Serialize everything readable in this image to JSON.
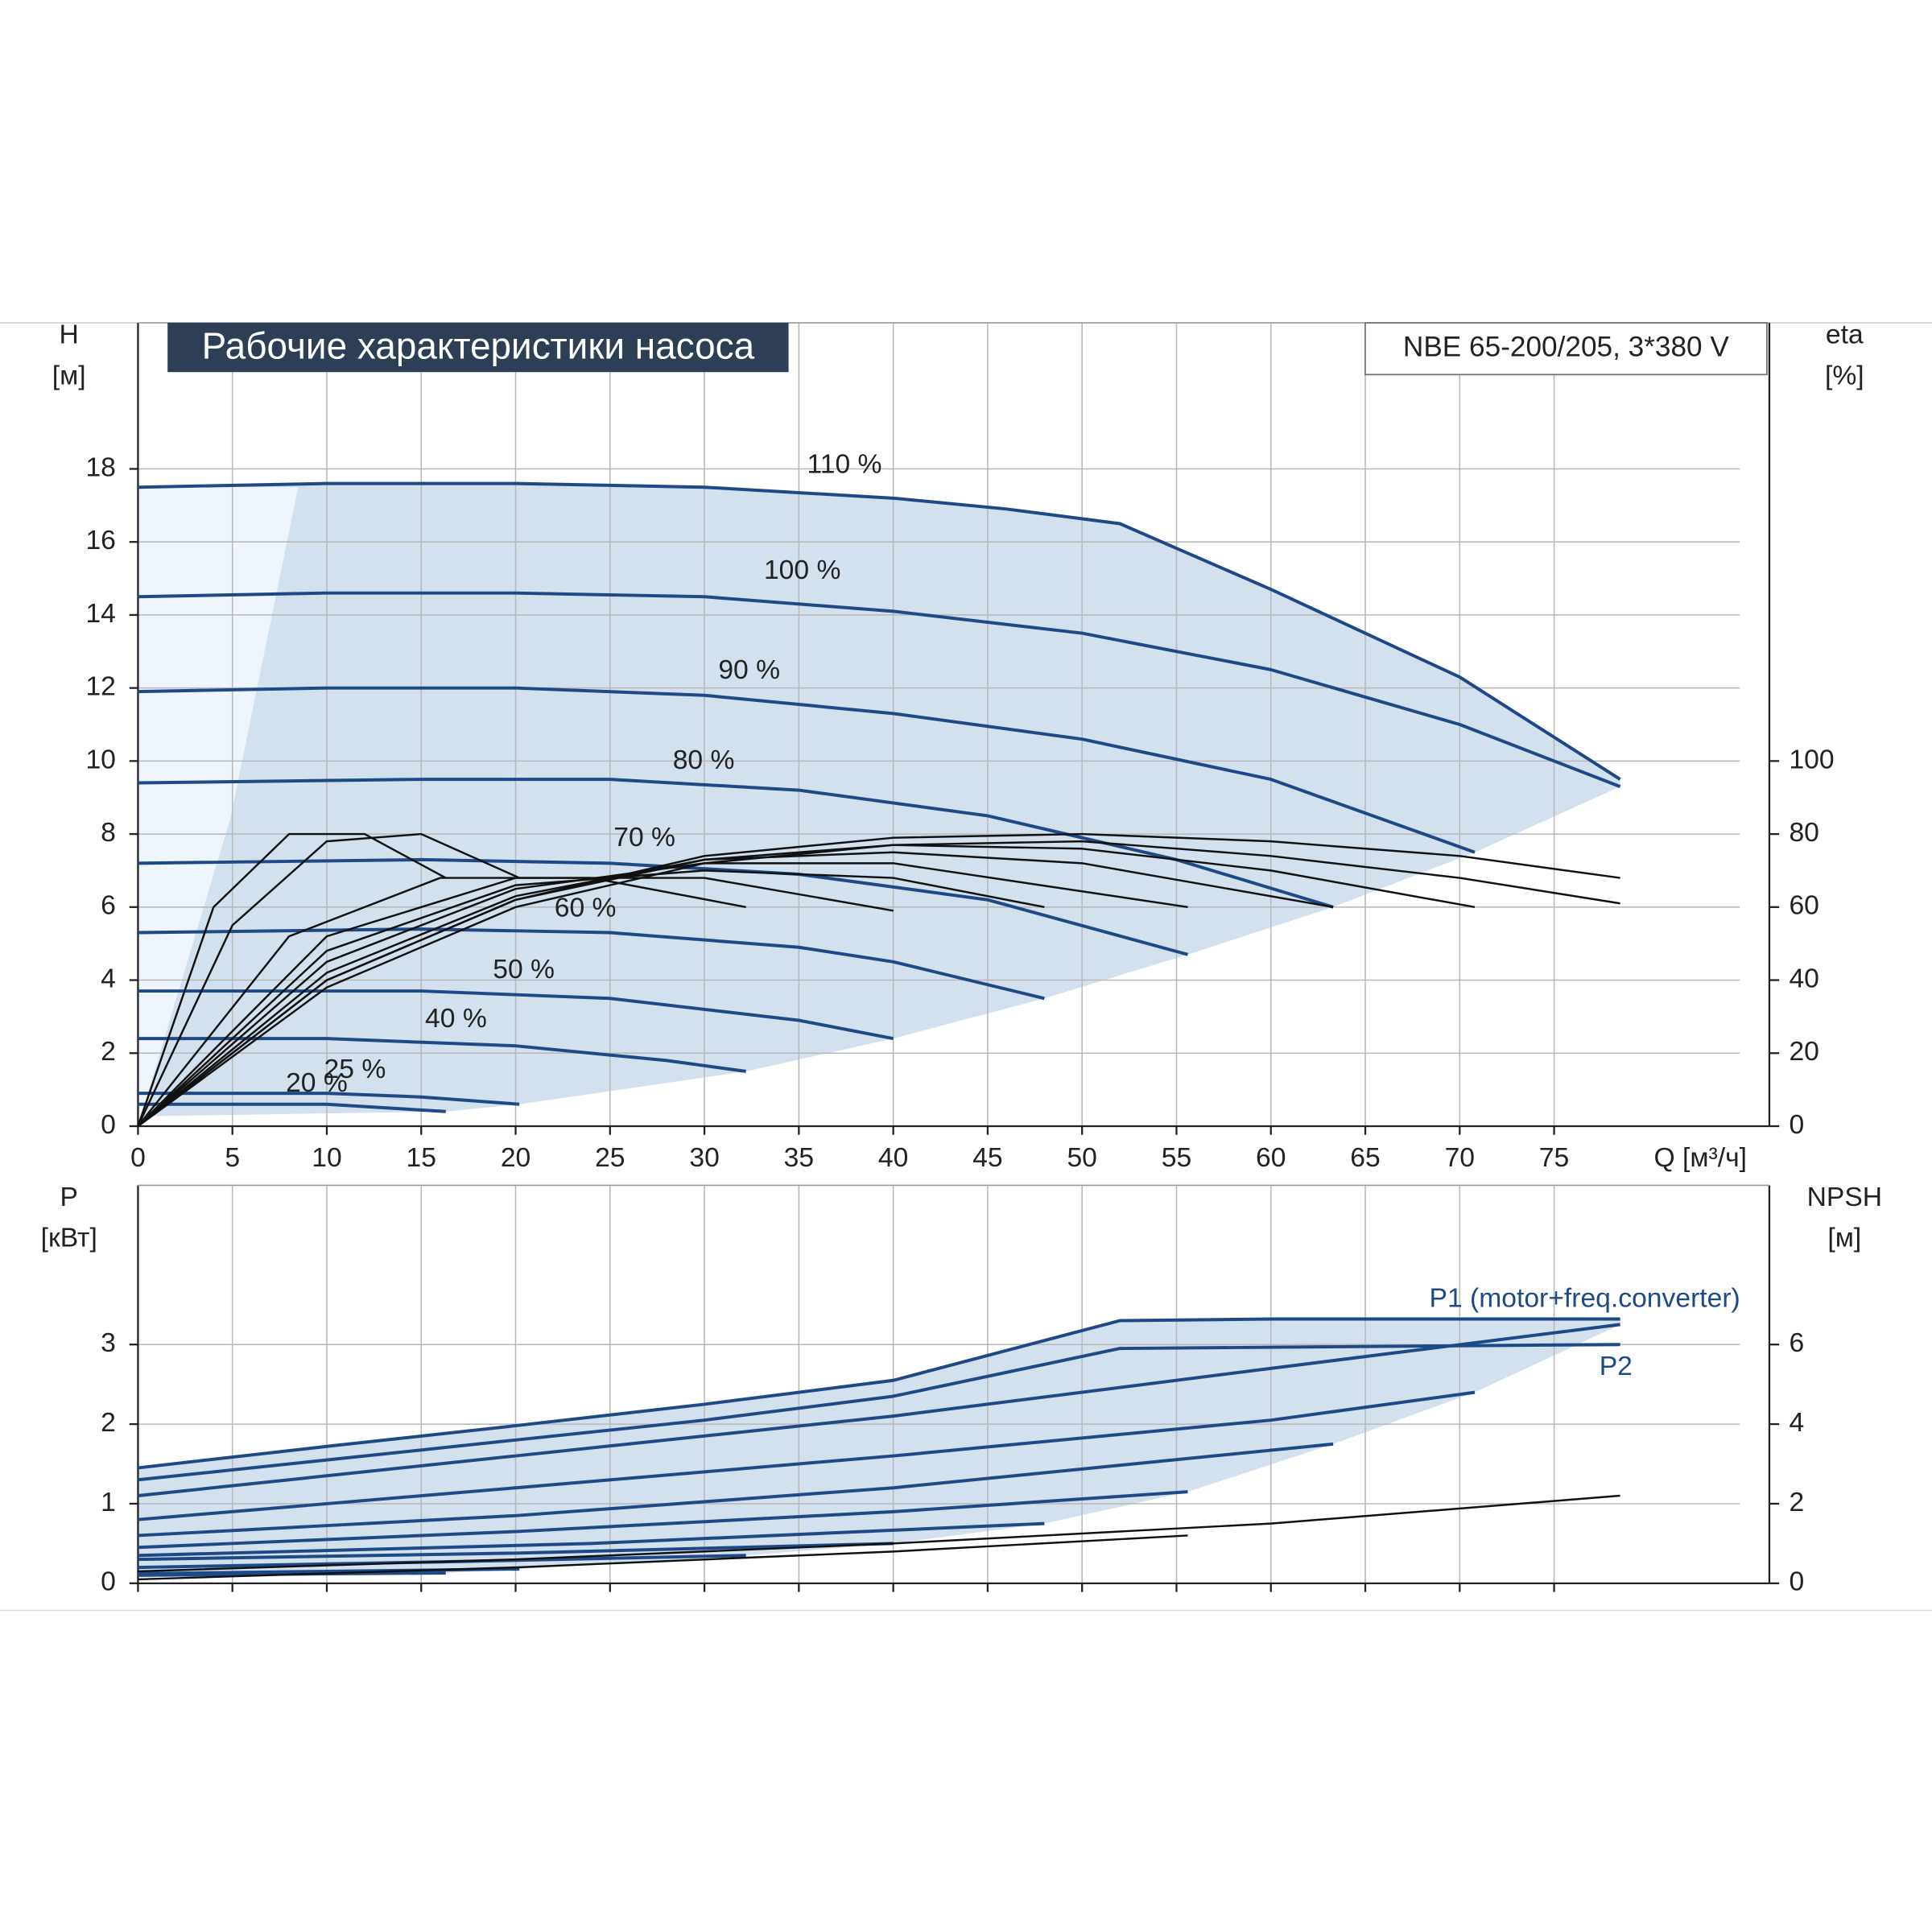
{
  "chart_data": [
    {
      "type": "line",
      "title": "Рабочие характеристики насоса",
      "subtitle": "NBE 65-200/205, 3*380 V",
      "ylabel": "H",
      "yunit": "[м]",
      "y2label": "eta",
      "y2unit": "[%]",
      "xlabel": "Q [м³/ч]",
      "xlim": [
        0,
        86.4
      ],
      "ylim": [
        0,
        22
      ],
      "y2lim": [
        0,
        220
      ],
      "xticks": [
        0,
        5,
        10,
        15,
        20,
        25,
        30,
        35,
        40,
        45,
        50,
        55,
        60,
        65,
        70,
        75
      ],
      "yticks": [
        0,
        2,
        4,
        6,
        8,
        10,
        12,
        14,
        16,
        18
      ],
      "y2ticks": [
        0,
        20,
        40,
        60,
        80,
        100
      ],
      "grid": true,
      "shaded_region": true,
      "show_xtick_labels": true,
      "series": [
        {
          "name": "110 %",
          "color": "#1d4a86",
          "x": [
            0,
            10,
            20,
            30,
            40,
            46,
            52,
            60,
            70,
            78.5
          ],
          "values": [
            17.5,
            17.6,
            17.6,
            17.5,
            17.2,
            16.9,
            16.5,
            14.7,
            12.3,
            9.5
          ]
        },
        {
          "name": "100 %",
          "color": "#1d4a86",
          "x": [
            0,
            10,
            20,
            30,
            40,
            50,
            60,
            70,
            78.5
          ],
          "values": [
            14.5,
            14.6,
            14.6,
            14.5,
            14.1,
            13.5,
            12.5,
            11.0,
            9.3
          ]
        },
        {
          "name": "90 %",
          "color": "#1d4a86",
          "x": [
            0,
            10,
            20,
            30,
            40,
            50,
            60,
            70.8
          ],
          "values": [
            11.9,
            12.0,
            12.0,
            11.8,
            11.3,
            10.6,
            9.5,
            7.5
          ]
        },
        {
          "name": "80 %",
          "color": "#1d4a86",
          "x": [
            0,
            15,
            25,
            35,
            45,
            55,
            63.3
          ],
          "values": [
            9.4,
            9.5,
            9.5,
            9.2,
            8.5,
            7.3,
            6.0
          ]
        },
        {
          "name": "70 %",
          "color": "#1d4a86",
          "x": [
            0,
            15,
            25,
            35,
            45,
            55.6
          ],
          "values": [
            7.2,
            7.3,
            7.2,
            6.9,
            6.2,
            4.7
          ]
        },
        {
          "name": "60 %",
          "color": "#1d4a86",
          "x": [
            0,
            15,
            25,
            35,
            40,
            48
          ],
          "values": [
            5.3,
            5.4,
            5.3,
            4.9,
            4.5,
            3.5
          ]
        },
        {
          "name": "50 %",
          "color": "#1d4a86",
          "x": [
            0,
            15,
            25,
            35,
            40
          ],
          "values": [
            3.7,
            3.7,
            3.5,
            2.9,
            2.4
          ]
        },
        {
          "name": "40 %",
          "color": "#1d4a86",
          "x": [
            0,
            10,
            20,
            28,
            32.2
          ],
          "values": [
            2.4,
            2.4,
            2.2,
            1.8,
            1.5
          ]
        },
        {
          "name": "25 %",
          "color": "#1d4a86",
          "x": [
            0,
            10,
            15,
            20.2
          ],
          "values": [
            0.9,
            0.9,
            0.8,
            0.6
          ]
        },
        {
          "name": "20 %",
          "color": "#1d4a86",
          "x": [
            0,
            10,
            16.3
          ],
          "values": [
            0.6,
            0.6,
            0.4
          ]
        },
        {
          "color": "#111111",
          "axis": "y2",
          "x": [
            0,
            10,
            20,
            30,
            40,
            50,
            60,
            70,
            78.5
          ],
          "values": [
            0,
            40,
            62,
            74,
            79,
            80,
            78,
            74,
            68
          ]
        },
        {
          "color": "#111111",
          "axis": "y2",
          "x": [
            0,
            10,
            20,
            30,
            40,
            50,
            60,
            70,
            78.5
          ],
          "values": [
            0,
            38,
            60,
            72,
            77,
            78,
            74,
            68,
            61
          ]
        },
        {
          "color": "#111111",
          "axis": "y2",
          "x": [
            0,
            10,
            20,
            30,
            40,
            50,
            60,
            70.8
          ],
          "values": [
            0,
            40,
            62,
            73,
            77,
            76,
            70,
            60
          ]
        },
        {
          "color": "#111111",
          "axis": "y2",
          "x": [
            0,
            10,
            20,
            30,
            40,
            50,
            63.3
          ],
          "values": [
            0,
            42,
            63,
            73,
            75,
            72,
            60
          ]
        },
        {
          "color": "#111111",
          "axis": "y2",
          "x": [
            0,
            10,
            20,
            30,
            40,
            55.6
          ],
          "values": [
            0,
            45,
            65,
            72,
            72,
            60
          ]
        },
        {
          "color": "#111111",
          "axis": "y2",
          "x": [
            0,
            10,
            20,
            30,
            40,
            48
          ],
          "values": [
            0,
            48,
            66,
            70,
            68,
            60
          ]
        },
        {
          "color": "#111111",
          "axis": "y2",
          "x": [
            0,
            10,
            20,
            30,
            40
          ],
          "values": [
            0,
            52,
            68,
            68,
            59
          ]
        },
        {
          "color": "#111111",
          "axis": "y2",
          "x": [
            0,
            8,
            16,
            24,
            32.2
          ],
          "values": [
            0,
            52,
            68,
            68,
            60
          ]
        },
        {
          "color": "#111111",
          "axis": "y2",
          "x": [
            0,
            5,
            10,
            15,
            20.2
          ],
          "values": [
            0,
            55,
            78,
            80,
            68
          ]
        },
        {
          "color": "#111111",
          "axis": "y2",
          "x": [
            0,
            4,
            8,
            12,
            16.3
          ],
          "values": [
            0,
            60,
            80,
            80,
            68
          ]
        }
      ]
    },
    {
      "type": "line",
      "ylabel": "P",
      "yunit": "[кВт]",
      "y2label": "NPSH",
      "y2unit": "[м]",
      "xlim": [
        0,
        86.4
      ],
      "ylim": [
        0,
        5
      ],
      "y2lim": [
        0,
        10
      ],
      "xticks": [
        0,
        5,
        10,
        15,
        20,
        25,
        30,
        35,
        40,
        45,
        50,
        55,
        60,
        65,
        70,
        75
      ],
      "yticks": [
        0,
        1,
        2,
        3
      ],
      "y2ticks": [
        0,
        2,
        4,
        6
      ],
      "grid": true,
      "shaded_region": true,
      "show_xtick_labels": false,
      "series": [
        {
          "name": "P1 (motor+freq.converter)",
          "color": "#1d4a86",
          "x": [
            0,
            10,
            20,
            30,
            40,
            52,
            60,
            70,
            78.5
          ],
          "values": [
            1.45,
            1.72,
            1.98,
            2.25,
            2.55,
            3.3,
            3.32,
            3.32,
            3.32
          ]
        },
        {
          "name": "P2",
          "color": "#1d4a86",
          "x": [
            0,
            10,
            20,
            30,
            40,
            52,
            78.5
          ],
          "values": [
            1.3,
            1.55,
            1.8,
            2.05,
            2.35,
            2.95,
            3.0
          ]
        },
        {
          "color": "#1d4a86",
          "x": [
            0,
            20,
            40,
            60,
            78.5
          ],
          "values": [
            1.1,
            1.6,
            2.1,
            2.7,
            3.25
          ]
        },
        {
          "color": "#1d4a86",
          "x": [
            0,
            20,
            40,
            60,
            70.8
          ],
          "values": [
            0.8,
            1.2,
            1.6,
            2.05,
            2.4
          ]
        },
        {
          "color": "#1d4a86",
          "x": [
            0,
            20,
            40,
            63.3
          ],
          "values": [
            0.6,
            0.85,
            1.2,
            1.75
          ]
        },
        {
          "color": "#1d4a86",
          "x": [
            0,
            20,
            40,
            55.6
          ],
          "values": [
            0.45,
            0.65,
            0.9,
            1.15
          ]
        },
        {
          "color": "#1d4a86",
          "x": [
            0,
            24,
            48
          ],
          "values": [
            0.35,
            0.5,
            0.75
          ]
        },
        {
          "color": "#1d4a86",
          "x": [
            0,
            20,
            40
          ],
          "values": [
            0.3,
            0.38,
            0.5
          ]
        },
        {
          "color": "#1d4a86",
          "x": [
            0,
            16,
            32.2
          ],
          "values": [
            0.2,
            0.27,
            0.35
          ]
        },
        {
          "color": "#1d4a86",
          "x": [
            0,
            10,
            20.2
          ],
          "values": [
            0.12,
            0.15,
            0.18
          ]
        },
        {
          "color": "#1d4a86",
          "x": [
            0,
            16.3
          ],
          "values": [
            0.1,
            0.13
          ]
        },
        {
          "color": "#111111",
          "axis": "y2",
          "x": [
            0,
            20,
            40,
            60,
            78.5
          ],
          "values": [
            0.3,
            0.6,
            1.0,
            1.5,
            2.2
          ]
        },
        {
          "color": "#111111",
          "axis": "y2",
          "x": [
            0,
            20,
            40,
            55.6
          ],
          "values": [
            0.1,
            0.4,
            0.8,
            1.2
          ]
        }
      ]
    }
  ]
}
